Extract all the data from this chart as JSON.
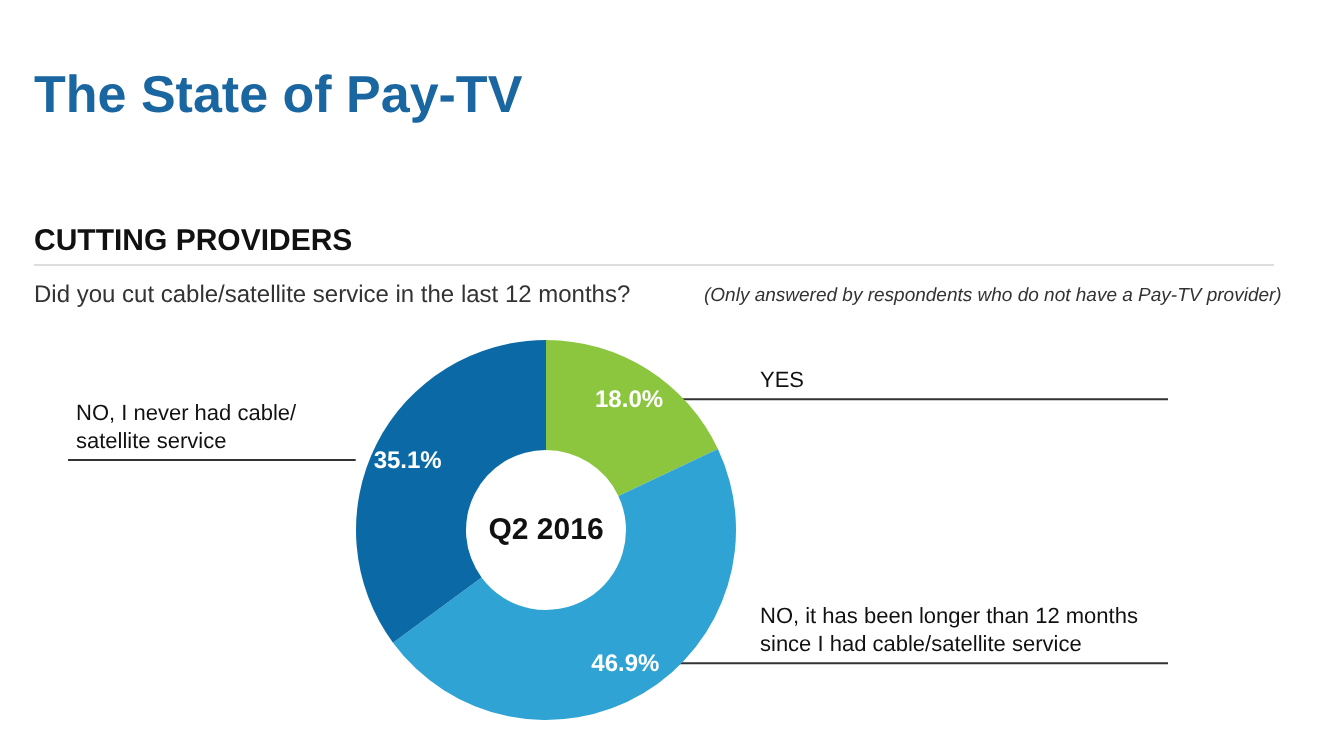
{
  "chart_data": {
    "type": "donut",
    "title": "The State of Pay-TV",
    "subtitle": "CUTTING PROVIDERS",
    "annotations": [
      "Did you cut cable/satellite service in the last 12 months?",
      "(Only answered by respondents who do not have a Pay-TV provider)",
      "Q2 2016"
    ],
    "categories": [
      "YES",
      "NO, it has been longer than 12 months since I had cable/satellite service",
      "NO, I never had cable/ satellite service"
    ],
    "values": [
      18.0,
      46.9,
      35.1
    ],
    "value_labels": [
      "18.0%",
      "46.9%",
      "35.1%"
    ],
    "colors": [
      "#8cc63f",
      "#2fa3d3",
      "#0b6aa6"
    ],
    "legend": false
  }
}
